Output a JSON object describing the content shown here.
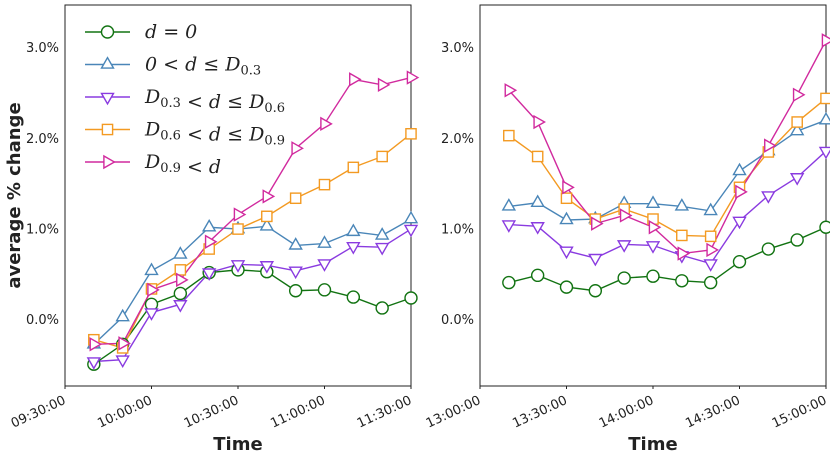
{
  "chart_data": [
    {
      "type": "line",
      "ylabel": "average % change",
      "xlabel": "Time",
      "x": [
        "09:40:00",
        "09:50:00",
        "10:00:00",
        "10:10:00",
        "10:20:00",
        "10:30:00",
        "10:40:00",
        "10:50:00",
        "11:00:00",
        "11:10:00",
        "11:20:00",
        "11:30:00"
      ],
      "xlim": [
        "09:30:00",
        "11:30:00"
      ],
      "xticks": [
        "09:30:00",
        "10:00:00",
        "10:30:00",
        "11:00:00",
        "11:30:00"
      ],
      "ylim": [
        -0.72,
        3.48
      ],
      "yticks": [
        {
          "value": 0,
          "label": "0.0%"
        },
        {
          "value": 1,
          "label": "1.0%"
        },
        {
          "value": 2,
          "label": "2.0%"
        },
        {
          "value": 3,
          "label": "3.0%"
        }
      ],
      "legend": "upper left",
      "series": [
        {
          "name": "d = 0",
          "color": "#127312",
          "marker": "circle",
          "values": [
            -0.48,
            -0.26,
            0.18,
            0.3,
            0.53,
            0.56,
            0.54,
            0.33,
            0.34,
            0.26,
            0.14,
            0.25
          ]
        },
        {
          "name": "0 < d ≤ D0.3",
          "color": "#4a86b8",
          "marker": "triangle-up",
          "values": [
            -0.26,
            0.04,
            0.55,
            0.73,
            1.03,
            1.01,
            1.04,
            0.83,
            0.85,
            0.98,
            0.94,
            1.12
          ]
        },
        {
          "name": "D0.3 < d ≤ D0.6",
          "color": "#8a3be0",
          "marker": "triangle-down",
          "values": [
            -0.45,
            -0.43,
            0.09,
            0.18,
            0.53,
            0.62,
            0.61,
            0.55,
            0.63,
            0.82,
            0.81,
            1.01
          ]
        },
        {
          "name": "D0.6 < d ≤ D0.9",
          "color": "#f39a22",
          "marker": "square",
          "values": [
            -0.21,
            -0.3,
            0.35,
            0.56,
            0.79,
            1.01,
            1.15,
            1.35,
            1.5,
            1.69,
            1.81,
            2.06
          ]
        },
        {
          "name": "D0.9 < d",
          "color": "#d12a9e",
          "marker": "triangle-right",
          "values": [
            -0.26,
            -0.25,
            0.34,
            0.45,
            0.87,
            1.17,
            1.37,
            1.9,
            2.17,
            2.66,
            2.6,
            2.68
          ]
        }
      ]
    },
    {
      "type": "line",
      "xlabel": "Time",
      "x": [
        "13:10:00",
        "13:20:00",
        "13:30:00",
        "13:40:00",
        "13:50:00",
        "14:00:00",
        "14:10:00",
        "14:20:00",
        "14:30:00",
        "14:40:00",
        "14:50:00",
        "15:00:00"
      ],
      "xlim": [
        "13:00:00",
        "15:00:00"
      ],
      "xticks": [
        "13:00:00",
        "13:30:00",
        "14:00:00",
        "14:30:00",
        "15:00:00"
      ],
      "ylim": [
        -0.72,
        3.48
      ],
      "yticks": [
        {
          "value": 0,
          "label": "0.0%"
        },
        {
          "value": 1,
          "label": "1.0%"
        },
        {
          "value": 2,
          "label": "2.0%"
        },
        {
          "value": 3,
          "label": "3.0%"
        }
      ],
      "series": [
        {
          "color": "#127312",
          "marker": "circle",
          "values": [
            0.42,
            0.5,
            0.37,
            0.33,
            0.47,
            0.49,
            0.44,
            0.42,
            0.65,
            0.79,
            0.89,
            1.03
          ]
        },
        {
          "color": "#4a86b8",
          "marker": "triangle-up",
          "values": [
            1.26,
            1.3,
            1.11,
            1.12,
            1.29,
            1.29,
            1.26,
            1.21,
            1.65,
            1.87,
            2.09,
            2.21
          ]
        },
        {
          "color": "#8a3be0",
          "marker": "triangle-down",
          "values": [
            1.06,
            1.04,
            0.77,
            0.69,
            0.84,
            0.83,
            0.72,
            0.63,
            1.1,
            1.38,
            1.58,
            1.87
          ]
        },
        {
          "color": "#f39a22",
          "marker": "square",
          "values": [
            2.04,
            1.81,
            1.35,
            1.12,
            1.23,
            1.12,
            0.94,
            0.93,
            1.47,
            1.86,
            2.19,
            2.45
          ]
        },
        {
          "color": "#d12a9e",
          "marker": "triangle-right",
          "values": [
            2.54,
            2.19,
            1.47,
            1.07,
            1.16,
            1.03,
            0.74,
            0.78,
            1.42,
            1.93,
            2.49,
            3.09
          ]
        }
      ]
    }
  ]
}
